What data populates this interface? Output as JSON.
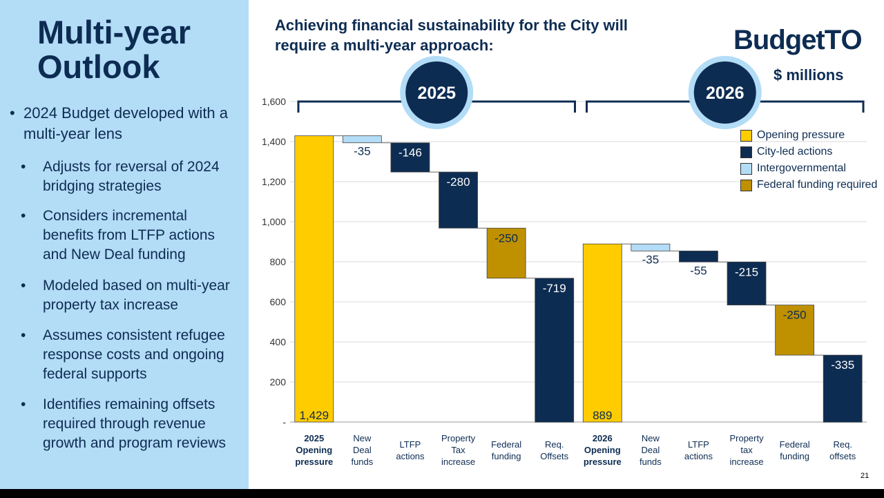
{
  "sidebar": {
    "title_line1": "Multi-year",
    "title_line2": "Outlook",
    "main_bullet": "2024 Budget developed with a multi-year lens",
    "sub_bullets": [
      "Adjusts for reversal of 2024 bridging strategies",
      "Considers incremental benefits from LTFP actions and New Deal funding",
      "Modeled based on multi-year property tax increase",
      "Assumes consistent refugee response costs and ongoing federal supports",
      "Identifies remaining offsets required through revenue growth and program reviews"
    ]
  },
  "header": {
    "heading_line1": "Achieving financial sustainability for the City will",
    "heading_line2": "require a multi-year approach:",
    "logo_part1": "Budget",
    "logo_part2": "TO",
    "units": "$ millions"
  },
  "footer": {
    "page_number": "21"
  },
  "colors": {
    "opening": "#ffcc00",
    "city": "#0d2c52",
    "intergov": "#b3dcf7",
    "federal": "#bf9000",
    "navy": "#0d2c52",
    "badge_ring": "#b3dcf7"
  },
  "chart_data": {
    "type": "waterfall",
    "ylim": [
      0,
      1600
    ],
    "yticks": [
      0,
      200,
      400,
      600,
      800,
      1000,
      1200,
      1400,
      1600
    ],
    "ytick_labels": [
      "-",
      "200",
      "400",
      "600",
      "800",
      "1,000",
      "1,200",
      "1,400",
      "1,600"
    ],
    "year_labels": [
      "2025",
      "2026"
    ],
    "legend": [
      {
        "label": "Opening pressure",
        "kind": "opening"
      },
      {
        "label": "City-led actions",
        "kind": "city"
      },
      {
        "label": "Intergovernmental",
        "kind": "intergov"
      },
      {
        "label": "Federal funding required",
        "kind": "federal"
      }
    ],
    "bars": [
      {
        "category": [
          "2025",
          "Opening",
          "pressure"
        ],
        "bold": true,
        "kind": "opening",
        "value": 1429,
        "label": "1,429"
      },
      {
        "category": [
          "New",
          "Deal",
          "funds"
        ],
        "bold": false,
        "kind": "intergov",
        "value": -35,
        "label": "-35"
      },
      {
        "category": [
          "LTFP",
          "actions"
        ],
        "bold": false,
        "kind": "city",
        "value": -146,
        "label": "-146"
      },
      {
        "category": [
          "Property",
          "Tax",
          "increase"
        ],
        "bold": false,
        "kind": "city",
        "value": -280,
        "label": "-280"
      },
      {
        "category": [
          "Federal",
          "funding"
        ],
        "bold": false,
        "kind": "federal",
        "value": -250,
        "label": "-250"
      },
      {
        "category": [
          "Req.",
          "Offsets"
        ],
        "bold": false,
        "kind": "city",
        "value": -719,
        "label": "-719"
      },
      {
        "category": [
          "2026",
          "Opening",
          "pressure"
        ],
        "bold": true,
        "kind": "opening",
        "value": 889,
        "label": "889"
      },
      {
        "category": [
          "New",
          "Deal",
          "funds"
        ],
        "bold": false,
        "kind": "intergov",
        "value": -35,
        "label": "-35"
      },
      {
        "category": [
          "LTFP",
          "actions"
        ],
        "bold": false,
        "kind": "city",
        "value": -55,
        "label": "-55"
      },
      {
        "category": [
          "Property",
          "tax",
          "increase"
        ],
        "bold": false,
        "kind": "city",
        "value": -215,
        "label": "-215"
      },
      {
        "category": [
          "Federal",
          "funding"
        ],
        "bold": false,
        "kind": "federal",
        "value": -250,
        "label": "-250"
      },
      {
        "category": [
          "Req.",
          "offsets"
        ],
        "bold": false,
        "kind": "city",
        "value": -335,
        "label": "-335"
      }
    ]
  }
}
